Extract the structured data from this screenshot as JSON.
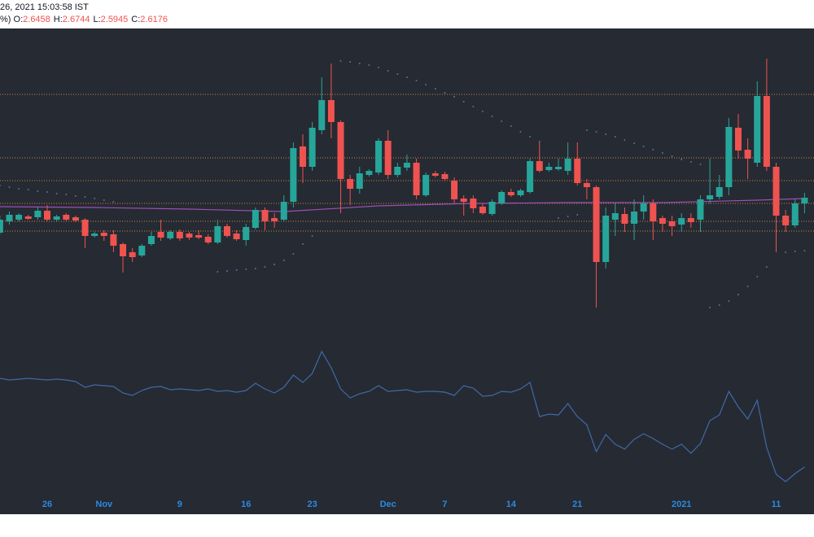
{
  "header": {
    "datetime": "26, 2021 15:03:58 IST",
    "prefix": "%)",
    "ohlc": [
      {
        "label": "O:",
        "value": "2.6458"
      },
      {
        "label": "H:",
        "value": "2.6744"
      },
      {
        "label": "L:",
        "value": "2.5945"
      },
      {
        "label": "C:",
        "value": "2.6176"
      }
    ]
  },
  "chart_data": {
    "type": "candlestick",
    "categories": [
      null,
      null,
      null,
      null,
      null,
      "26",
      null,
      null,
      null,
      null,
      null,
      "Nov",
      null,
      null,
      null,
      null,
      null,
      null,
      null,
      "9",
      null,
      null,
      null,
      null,
      null,
      null,
      "16",
      null,
      null,
      null,
      null,
      null,
      null,
      "23",
      null,
      null,
      null,
      null,
      null,
      null,
      null,
      "Dec",
      null,
      null,
      null,
      null,
      null,
      "7",
      null,
      null,
      null,
      null,
      null,
      null,
      "14",
      null,
      null,
      null,
      null,
      null,
      null,
      "21",
      null,
      null,
      null,
      null,
      null,
      null,
      null,
      null,
      null,
      null,
      "2021",
      null,
      null,
      null,
      null,
      null,
      null,
      null,
      null,
      null,
      "11",
      null,
      null,
      null
    ],
    "ohlc": [
      [
        2.24,
        2.45,
        2.22,
        2.4
      ],
      [
        2.38,
        2.5,
        2.34,
        2.46
      ],
      [
        2.4,
        2.48,
        2.38,
        2.46
      ],
      [
        2.44,
        2.46,
        2.4,
        2.41
      ],
      [
        2.43,
        2.55,
        2.4,
        2.51
      ],
      [
        2.51,
        2.58,
        2.38,
        2.4
      ],
      [
        2.4,
        2.46,
        2.38,
        2.44
      ],
      [
        2.46,
        2.48,
        2.38,
        2.4
      ],
      [
        2.43,
        2.45,
        2.37,
        2.39
      ],
      [
        2.4,
        2.42,
        2.05,
        2.2
      ],
      [
        2.2,
        2.25,
        2.18,
        2.23
      ],
      [
        2.24,
        2.27,
        2.14,
        2.2
      ],
      [
        2.22,
        2.27,
        2.0,
        2.08
      ],
      [
        2.1,
        2.12,
        1.75,
        1.95
      ],
      [
        2.0,
        2.05,
        1.88,
        1.94
      ],
      [
        1.96,
        2.1,
        1.94,
        2.08
      ],
      [
        2.1,
        2.25,
        2.08,
        2.2
      ],
      [
        2.25,
        2.4,
        2.14,
        2.18
      ],
      [
        2.17,
        2.27,
        2.15,
        2.25
      ],
      [
        2.25,
        2.28,
        2.14,
        2.17
      ],
      [
        2.23,
        2.25,
        2.15,
        2.18
      ],
      [
        2.21,
        2.27,
        2.16,
        2.18
      ],
      [
        2.19,
        2.22,
        2.1,
        2.12
      ],
      [
        2.12,
        2.4,
        2.1,
        2.32
      ],
      [
        2.32,
        2.35,
        2.18,
        2.2
      ],
      [
        2.23,
        2.27,
        2.14,
        2.16
      ],
      [
        2.15,
        2.35,
        2.08,
        2.31
      ],
      [
        2.3,
        2.55,
        2.28,
        2.52
      ],
      [
        2.52,
        2.55,
        2.27,
        2.38
      ],
      [
        2.42,
        2.48,
        2.3,
        2.38
      ],
      [
        2.4,
        2.7,
        2.38,
        2.62
      ],
      [
        2.62,
        3.35,
        2.55,
        3.28
      ],
      [
        3.3,
        3.45,
        2.85,
        3.05
      ],
      [
        3.05,
        3.6,
        3.0,
        3.53
      ],
      [
        3.5,
        4.15,
        3.45,
        3.87
      ],
      [
        3.87,
        4.32,
        3.4,
        3.6
      ],
      [
        3.6,
        3.62,
        2.48,
        2.9
      ],
      [
        2.9,
        2.95,
        2.58,
        2.78
      ],
      [
        2.78,
        3.05,
        2.72,
        2.97
      ],
      [
        2.95,
        3.02,
        2.93,
        3.0
      ],
      [
        2.98,
        3.4,
        2.95,
        3.37
      ],
      [
        3.37,
        3.5,
        2.9,
        2.95
      ],
      [
        2.95,
        3.1,
        2.92,
        3.05
      ],
      [
        3.04,
        3.2,
        3.0,
        3.1
      ],
      [
        3.1,
        3.15,
        2.65,
        2.7
      ],
      [
        2.7,
        2.98,
        2.68,
        2.95
      ],
      [
        2.97,
        3.0,
        2.92,
        2.94
      ],
      [
        2.96,
        2.99,
        2.88,
        2.9
      ],
      [
        2.88,
        2.92,
        2.6,
        2.65
      ],
      [
        2.66,
        2.7,
        2.45,
        2.62
      ],
      [
        2.66,
        2.7,
        2.48,
        2.54
      ],
      [
        2.56,
        2.6,
        2.46,
        2.48
      ],
      [
        2.47,
        2.65,
        2.45,
        2.62
      ],
      [
        2.6,
        2.76,
        2.58,
        2.74
      ],
      [
        2.74,
        2.78,
        2.68,
        2.7
      ],
      [
        2.7,
        2.78,
        2.68,
        2.76
      ],
      [
        2.74,
        3.15,
        2.72,
        3.12
      ],
      [
        3.12,
        3.35,
        2.98,
        3.0
      ],
      [
        3.01,
        3.1,
        2.99,
        3.05
      ],
      [
        3.02,
        3.15,
        3.0,
        3.05
      ],
      [
        3.0,
        3.35,
        2.95,
        3.15
      ],
      [
        3.15,
        3.35,
        2.82,
        2.85
      ],
      [
        2.85,
        2.9,
        2.65,
        2.8
      ],
      [
        2.8,
        2.82,
        1.32,
        1.88
      ],
      [
        1.88,
        2.55,
        1.8,
        2.45
      ],
      [
        2.4,
        2.6,
        2.2,
        2.48
      ],
      [
        2.47,
        2.55,
        2.25,
        2.35
      ],
      [
        2.35,
        2.65,
        2.15,
        2.5
      ],
      [
        2.5,
        2.7,
        2.4,
        2.6
      ],
      [
        2.6,
        2.65,
        2.15,
        2.38
      ],
      [
        2.42,
        2.45,
        2.25,
        2.35
      ],
      [
        2.38,
        2.45,
        2.2,
        2.32
      ],
      [
        2.34,
        2.48,
        2.25,
        2.42
      ],
      [
        2.42,
        2.48,
        2.3,
        2.37
      ],
      [
        2.4,
        2.7,
        2.25,
        2.65
      ],
      [
        2.65,
        3.15,
        2.6,
        2.7
      ],
      [
        2.68,
        2.95,
        2.65,
        2.8
      ],
      [
        2.8,
        3.65,
        2.7,
        3.54
      ],
      [
        3.53,
        3.7,
        3.15,
        3.25
      ],
      [
        3.26,
        3.4,
        2.9,
        3.15
      ],
      [
        3.1,
        4.1,
        3.05,
        3.92
      ],
      [
        3.92,
        4.38,
        3.0,
        3.05
      ],
      [
        3.05,
        3.1,
        2.0,
        2.45
      ],
      [
        2.45,
        2.52,
        2.25,
        2.33
      ],
      [
        2.33,
        2.65,
        2.3,
        2.6
      ],
      [
        2.6,
        2.73,
        2.48,
        2.67
      ]
    ],
    "up_color": "#26a69a",
    "down_color": "#ef5350",
    "ylim": [
      1.1,
      4.75
    ],
    "levels": [
      3.94,
      3.16,
      2.88,
      2.6,
      2.38,
      2.26
    ],
    "level_color": "#c8893e",
    "moving_average": {
      "x": [
        0,
        10,
        20,
        30,
        40,
        50,
        60,
        70,
        80,
        85
      ],
      "values": [
        2.56,
        2.55,
        2.53,
        2.5,
        2.57,
        2.6,
        2.61,
        2.61,
        2.64,
        2.66
      ],
      "color": "#9c4fb5"
    },
    "sar": {
      "values": [
        2.82,
        2.8,
        2.78,
        2.77,
        2.75,
        2.74,
        2.72,
        2.71,
        2.69,
        2.68,
        2.66,
        2.64,
        2.62,
        null,
        null,
        null,
        null,
        null,
        null,
        null,
        null,
        null,
        null,
        1.76,
        1.77,
        1.78,
        1.79,
        1.8,
        1.82,
        1.85,
        1.9,
        1.98,
        2.1,
        2.2,
        null,
        null,
        4.35,
        4.34,
        4.32,
        4.3,
        4.27,
        4.23,
        4.19,
        4.15,
        4.11,
        4.06,
        4.01,
        3.96,
        3.91,
        3.85,
        3.79,
        3.73,
        3.67,
        3.61,
        3.55,
        3.48,
        3.42,
        3.36,
        null,
        2.42,
        2.44,
        2.46,
        3.5,
        3.48,
        3.45,
        3.42,
        3.38,
        3.34,
        3.3,
        3.26,
        3.22,
        3.18,
        3.14,
        3.11,
        3.08,
        1.32,
        1.35,
        1.4,
        1.48,
        1.58,
        1.7,
        1.82,
        null,
        2.0,
        2.01,
        2.02
      ],
      "color": "#5d6f99"
    },
    "indicator": {
      "values": [
        72.5,
        71.5,
        72,
        72.5,
        72,
        71.5,
        72,
        71.5,
        70.5,
        67,
        68.5,
        68,
        67.5,
        63.5,
        62,
        65,
        67,
        67.5,
        65.5,
        66,
        65.5,
        65,
        66,
        64.5,
        65,
        64,
        65,
        69.5,
        66,
        63.5,
        67,
        74.5,
        70,
        75.5,
        89,
        79,
        66,
        60.5,
        63,
        64.5,
        68,
        64.5,
        65,
        65.5,
        64,
        64.5,
        64.5,
        64,
        62,
        68,
        66.5,
        61.5,
        62,
        64.5,
        64,
        66,
        70,
        49,
        50.5,
        50,
        57,
        49,
        44,
        27.5,
        38,
        32,
        29,
        35,
        38.5,
        35.5,
        32,
        29,
        32,
        26.5,
        32.5,
        46.5,
        50,
        64.5,
        55,
        47.5,
        59,
        30,
        13.5,
        9,
        14,
        18
      ],
      "ylim": [
        0,
        100
      ],
      "color": "#3f6aa8"
    },
    "tick_color": "#2a8ae0"
  }
}
